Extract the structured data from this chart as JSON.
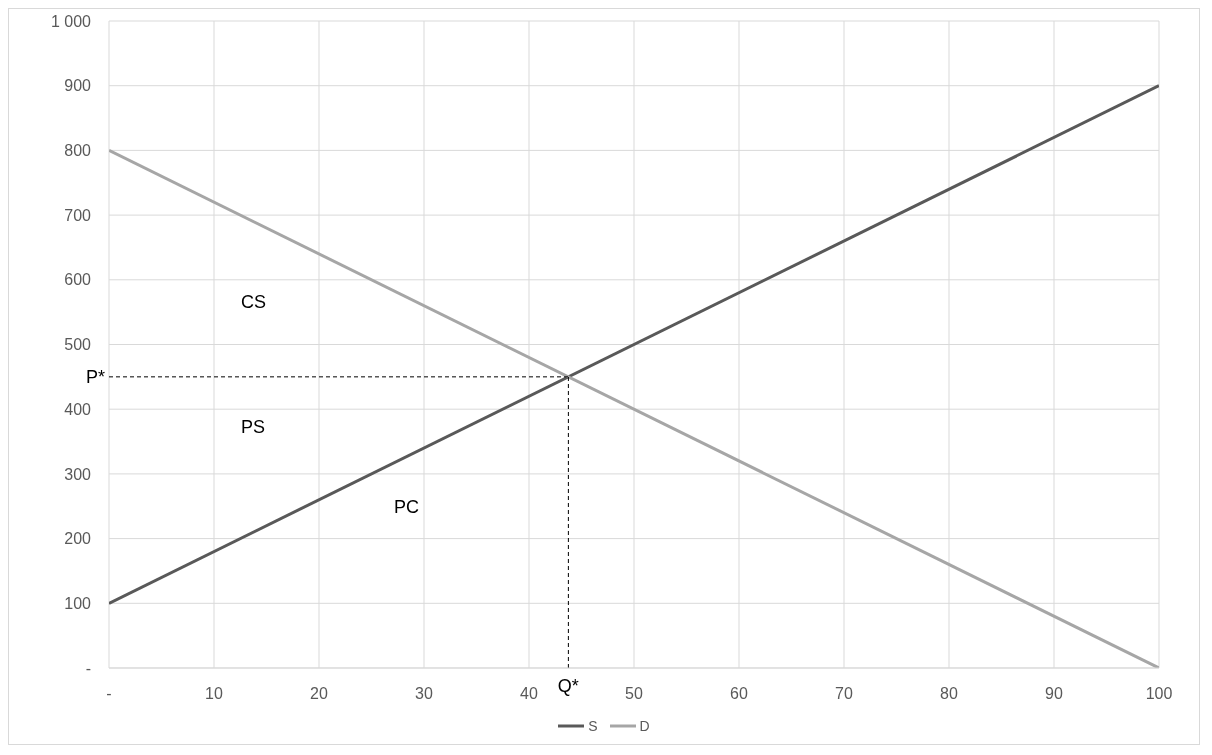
{
  "chart_data": {
    "type": "line",
    "x": [
      0,
      100
    ],
    "series": [
      {
        "name": "S",
        "color": "#595959",
        "values": [
          100,
          900
        ]
      },
      {
        "name": "D",
        "color": "#a6a6a6",
        "values": [
          800,
          0
        ]
      }
    ],
    "xlim": [
      0,
      100
    ],
    "xticks": [
      {
        "value": 0,
        "label": "-"
      },
      10,
      20,
      30,
      40,
      50,
      60,
      70,
      80,
      90,
      100
    ],
    "ylim": [
      0,
      1000
    ],
    "yticks": [
      {
        "value": 0,
        "label": "-"
      },
      100,
      200,
      300,
      400,
      500,
      600,
      700,
      800,
      900,
      {
        "value": 1000,
        "label": "1 000"
      }
    ],
    "grid": true,
    "legend": "bottom",
    "marker": "none",
    "line_style": "solid",
    "ref_lines": [
      {
        "axis": "y",
        "value": 450,
        "label": "P*",
        "color": "#000000",
        "line_style": "dashed"
      },
      {
        "axis": "x",
        "value": 43.75,
        "label": "Q*",
        "color": "#000000",
        "line_style": "dashed"
      }
    ],
    "annotations": [
      "CS",
      "PS",
      "PC"
    ]
  }
}
